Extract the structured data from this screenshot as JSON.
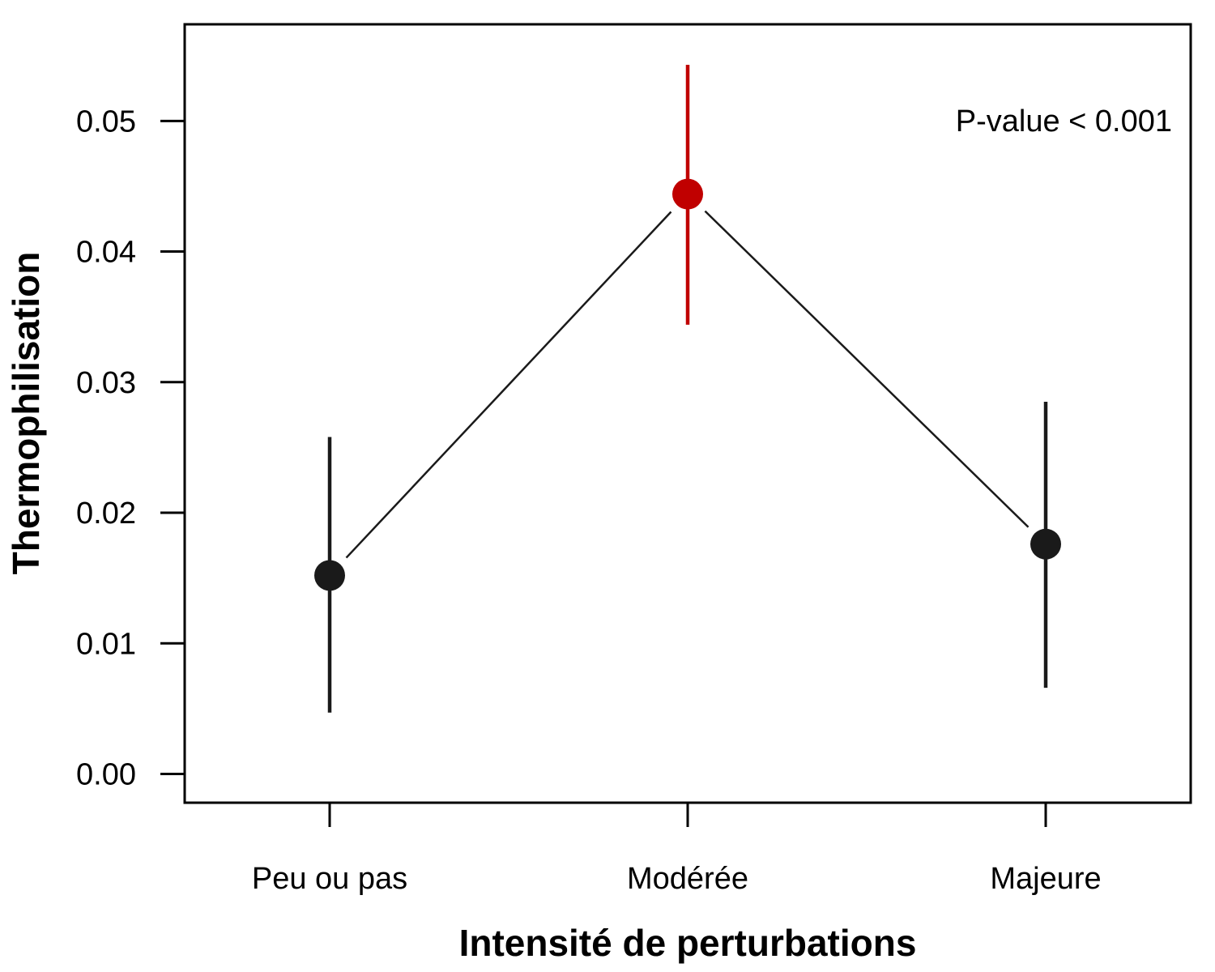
{
  "chart_data": {
    "type": "scatter",
    "xlabel": "Intensité de perturbations",
    "ylabel": "Thermophilisation",
    "categories": [
      "Peu ou pas",
      "Modérée",
      "Majeure"
    ],
    "series": [
      {
        "values": [
          0.0152,
          0.0444,
          0.0176
        ],
        "lower": [
          0.0047,
          0.0344,
          0.0066
        ],
        "upper": [
          0.0258,
          0.0543,
          0.0285
        ],
        "colors": [
          "#1a1a1a",
          "#c00000",
          "#1a1a1a"
        ]
      }
    ],
    "connect_points": true,
    "ylim": [
      -0.0022,
      0.0574
    ],
    "yticks": [
      "0.00",
      "0.01",
      "0.02",
      "0.03",
      "0.04",
      "0.05"
    ],
    "annotation": "P-value < 0.001",
    "grid": false,
    "legend": "none"
  }
}
